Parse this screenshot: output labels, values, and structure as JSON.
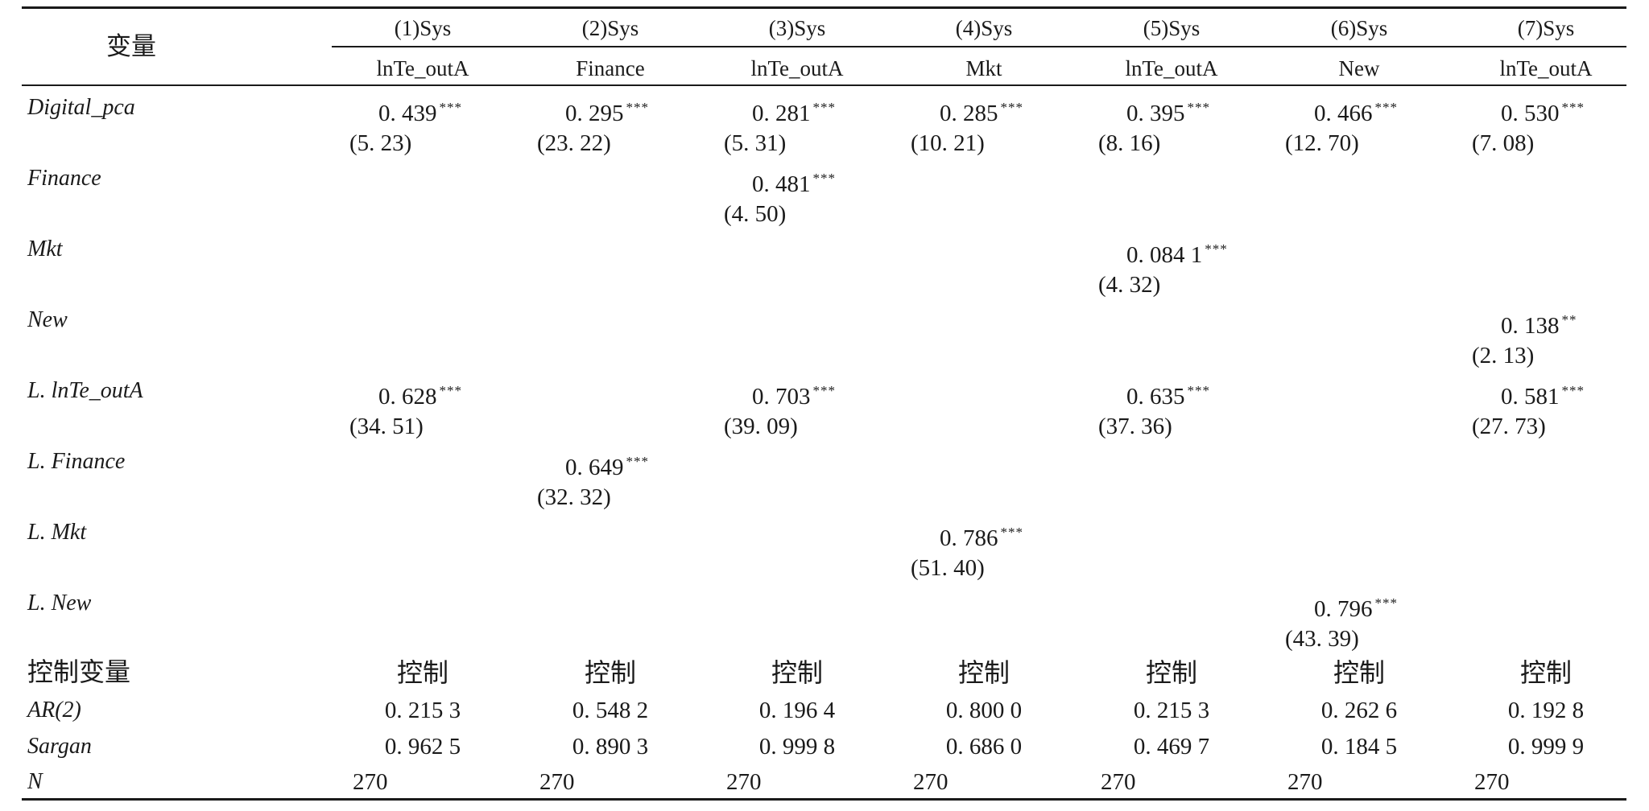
{
  "table": {
    "var_header": "变量",
    "columns": [
      {
        "model": "(1)Sys",
        "dep": "lnTe_outA"
      },
      {
        "model": "(2)Sys",
        "dep": "Finance"
      },
      {
        "model": "(3)Sys",
        "dep": "lnTe_outA"
      },
      {
        "model": "(4)Sys",
        "dep": "Mkt"
      },
      {
        "model": "(5)Sys",
        "dep": "lnTe_outA"
      },
      {
        "model": "(6)Sys",
        "dep": "New"
      },
      {
        "model": "(7)Sys",
        "dep": "lnTe_outA"
      }
    ],
    "rows": [
      {
        "label": "Digital_pca",
        "cells": [
          {
            "coef": "0. 439",
            "stars": "***",
            "t": "(5. 23)"
          },
          {
            "coef": "0. 295",
            "stars": "***",
            "t": "(23. 22)"
          },
          {
            "coef": "0. 281",
            "stars": "***",
            "t": "(5. 31)"
          },
          {
            "coef": "0. 285",
            "stars": "***",
            "t": "(10. 21)"
          },
          {
            "coef": "0. 395",
            "stars": "***",
            "t": "(8. 16)"
          },
          {
            "coef": "0. 466",
            "stars": "***",
            "t": "(12. 70)"
          },
          {
            "coef": "0. 530",
            "stars": "***",
            "t": "(7. 08)"
          }
        ]
      },
      {
        "label": "Finance",
        "cells": [
          null,
          null,
          {
            "coef": "0. 481",
            "stars": "***",
            "t": "(4. 50)"
          },
          null,
          null,
          null,
          null
        ]
      },
      {
        "label": "Mkt",
        "cells": [
          null,
          null,
          null,
          null,
          {
            "coef": "0. 084 1",
            "stars": "***",
            "t": "(4. 32)"
          },
          null,
          null
        ]
      },
      {
        "label": "New",
        "cells": [
          null,
          null,
          null,
          null,
          null,
          null,
          {
            "coef": "0. 138",
            "stars": "**",
            "t": "(2. 13)"
          }
        ]
      },
      {
        "label": "L. lnTe_outA",
        "cells": [
          {
            "coef": "0. 628",
            "stars": "***",
            "t": "(34. 51)"
          },
          null,
          {
            "coef": "0. 703",
            "stars": "***",
            "t": "(39. 09)"
          },
          null,
          {
            "coef": "0. 635",
            "stars": "***",
            "t": "(37. 36)"
          },
          null,
          {
            "coef": "0. 581",
            "stars": "***",
            "t": "(27. 73)"
          }
        ]
      },
      {
        "label": "L. Finance",
        "cells": [
          null,
          {
            "coef": "0. 649",
            "stars": "***",
            "t": "(32. 32)"
          },
          null,
          null,
          null,
          null,
          null
        ]
      },
      {
        "label": "L. Mkt",
        "cells": [
          null,
          null,
          null,
          {
            "coef": "0. 786",
            "stars": "***",
            "t": "(51. 40)"
          },
          null,
          null,
          null
        ]
      },
      {
        "label": "L. New",
        "cells": [
          null,
          null,
          null,
          null,
          null,
          {
            "coef": "0. 796",
            "stars": "***",
            "t": "(43. 39)"
          },
          null
        ]
      }
    ],
    "controls": {
      "label": "控制变量",
      "values": [
        "控制",
        "控制",
        "控制",
        "控制",
        "控制",
        "控制",
        "控制"
      ]
    },
    "ar2": {
      "label": "AR(2)",
      "values": [
        "0. 215 3",
        "0. 548 2",
        "0. 196 4",
        "0. 800 0",
        "0. 215 3",
        "0. 262 6",
        "0. 192 8"
      ]
    },
    "sargan": {
      "label": "Sargan",
      "values": [
        "0. 962 5",
        "0. 890 3",
        "0. 999 8",
        "0. 686 0",
        "0. 469 7",
        "0. 184 5",
        "0. 999 9"
      ]
    },
    "n": {
      "label": "N",
      "values": [
        "270",
        "270",
        "270",
        "270",
        "270",
        "270",
        "270"
      ]
    }
  }
}
